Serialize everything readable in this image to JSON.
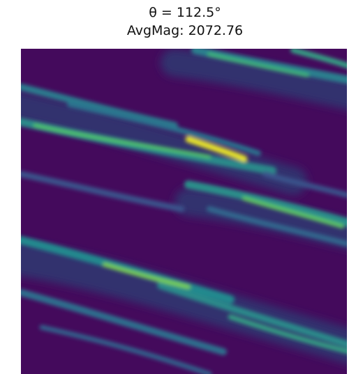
{
  "title": "θ = 112.5°",
  "subtitle": "AvgMag: 2072.76"
}
